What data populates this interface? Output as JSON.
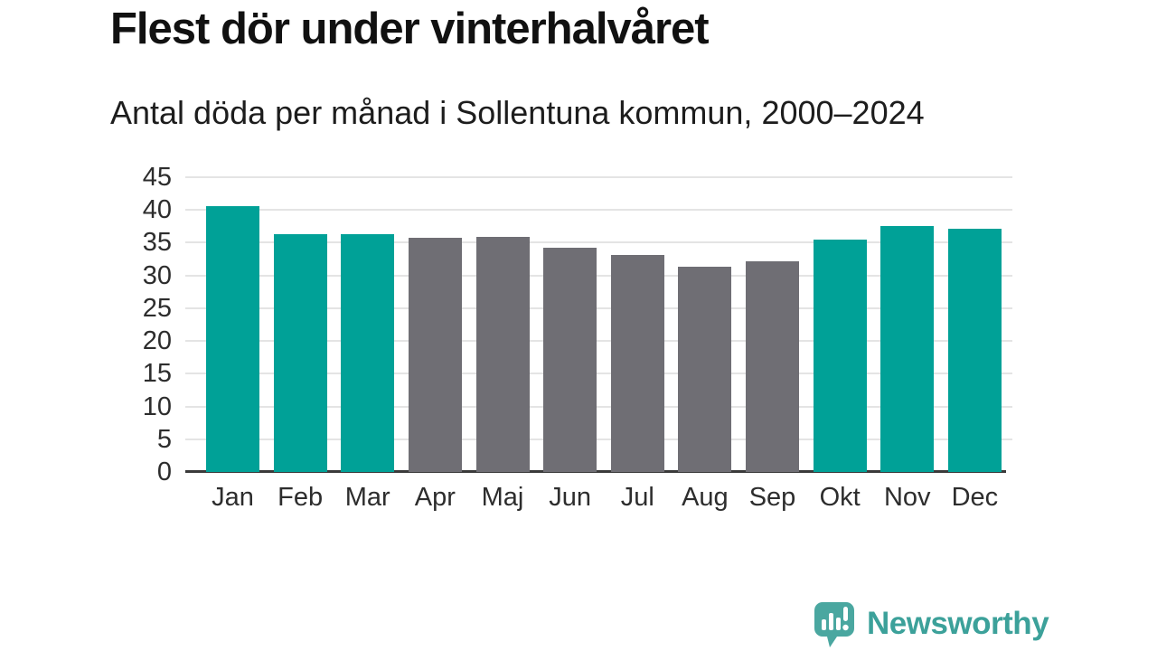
{
  "title": "Flest dör under vinterhalvåret",
  "subtitle": "Antal döda per månad i Sollentuna kommun, 2000–2024",
  "colors": {
    "highlight": "#00a197",
    "muted": "#6f6e74",
    "gridline": "#e4e4e4",
    "axis": "#3a3a3a",
    "title_text": "#111111",
    "tick_text": "#2d2d2d",
    "logo": "#3ca19a",
    "logo_icon": "#4aa7a0",
    "background": "#ffffff"
  },
  "chart_data": {
    "type": "bar",
    "title": "Flest dör under vinterhalvåret",
    "subtitle": "Antal döda per månad i Sollentuna kommun, 2000–2024",
    "categories": [
      "Jan",
      "Feb",
      "Mar",
      "Apr",
      "Maj",
      "Jun",
      "Jul",
      "Aug",
      "Sep",
      "Okt",
      "Nov",
      "Dec"
    ],
    "values": [
      40.6,
      36.3,
      36.3,
      35.8,
      35.9,
      34.2,
      33.2,
      31.3,
      32.1,
      35.5,
      37.5,
      37.1
    ],
    "bar_colors": [
      "highlight",
      "highlight",
      "highlight",
      "muted",
      "muted",
      "muted",
      "muted",
      "muted",
      "muted",
      "highlight",
      "highlight",
      "highlight"
    ],
    "xlabel": "",
    "ylabel": "",
    "ylim": [
      0,
      45
    ],
    "yticks": [
      0,
      5,
      10,
      15,
      20,
      25,
      30,
      35,
      40,
      45
    ],
    "grid": true,
    "legend": false
  },
  "footer": {
    "brand": "Newsworthy",
    "logo_icon": "newsworthy-speech-bubble-chart-icon"
  }
}
